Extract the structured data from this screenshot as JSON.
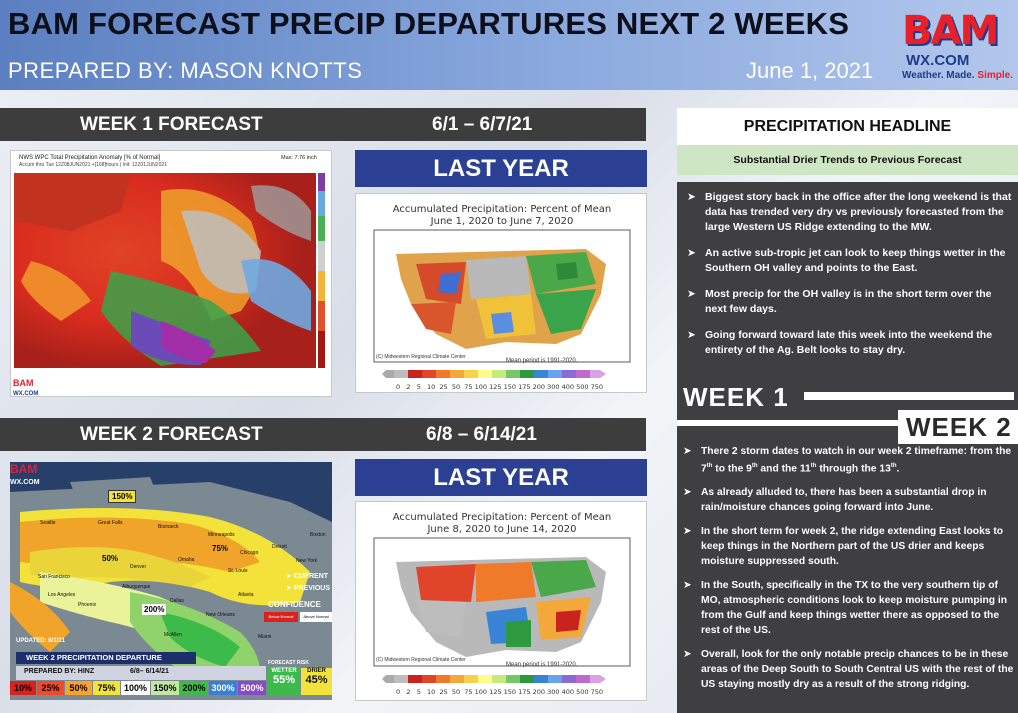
{
  "header": {
    "title": "BAM FORECAST PRECIP DEPARTURES NEXT 2 WEEKS",
    "prepared_by": "PREPARED BY: MASON KNOTTS",
    "date": "June 1, 2021",
    "logo_text": "BAM",
    "logo_domain": "WX.COM",
    "logo_tag_1": "Weather. Made. ",
    "logo_tag_2": "Simple."
  },
  "week1": {
    "label": "WEEK 1 FORECAST",
    "range": "6/1 – 6/7/21",
    "map_title": "NWS WPC Total Precipitation Anomaly [% of Normal]",
    "map_sub": "Accum thru Tue 12Z08JUN2021 +[168]hours | Init: 12Z01JUN2021",
    "map_max": "Max: 7.76 inch",
    "last_year": "LAST YEAR",
    "ly_title_1": "Accumulated Precipitation: Percent of Mean",
    "ly_title_2": "June 1, 2020 to June 7, 2020",
    "ly_credit": "(C) Midwestern Regional Climate Center",
    "ly_period": "Mean period is 1991-2020."
  },
  "week2": {
    "label": "WEEK 2 FORECAST",
    "range": "6/8 – 6/14/21",
    "last_year": "LAST YEAR",
    "ly_title_1": "Accumulated Precipitation: Percent of Mean",
    "ly_title_2": "June 8, 2020 to June 14, 2020",
    "ly_credit": "(C) Midwestern Regional Climate Center",
    "ly_period": "Mean period is 1991-2020.",
    "map_legend_current": "CURRENT",
    "map_legend_previous": "PREVIOUS",
    "confidence": "CONFIDENCE",
    "below_normal": "Below Normal",
    "above_normal": "Above Normal",
    "updated": "UPDATED: 6/1/21",
    "departure_title": "WEEK 2 PRECIPITATION DEPARTURE",
    "prepared_by": "PREPARED BY: HINZ",
    "dates": "6/8– 6/14/21",
    "forecast_risk": "FORECAST RISK",
    "wetter": "WETTER",
    "drier": "DRIER",
    "wetter_pct": "55%",
    "drier_pct": "45%",
    "scale": [
      "10%",
      "25%",
      "50%",
      "75%",
      "100%",
      "150%",
      "200%",
      "300%",
      "500%"
    ],
    "labels": [
      "150%",
      "50%",
      "75%",
      "200%"
    ],
    "cities": [
      "Seattle",
      "Great Falls",
      "Bismarck",
      "Minneapolis",
      "Chicago",
      "Detroit",
      "Omaha",
      "Denver",
      "St. Louis",
      "San Francisco",
      "Los Angeles",
      "Albuquerque",
      "Dallas",
      "Atlanta",
      "New York",
      "New Orleans",
      "McAllen",
      "Miami",
      "Boston",
      "Phoenix"
    ]
  },
  "ly_scale": [
    "0",
    "2",
    "5",
    "10",
    "25",
    "50",
    "75",
    "100",
    "125",
    "150",
    "175",
    "200",
    "300",
    "400",
    "500",
    "750"
  ],
  "right": {
    "headline_title": "PRECIPITATION HEADLINE",
    "headline_sub": "Substantial Drier Trends to Previous Forecast",
    "bullets": [
      "Biggest story back in the office after the long weekend is that data has trended very dry vs previously forecasted from the large Western US Ridge extending to the MW.",
      "An active sub-tropic jet can look to keep things wetter in the Southern OH valley and points to the East.",
      "Most precip for the OH valley is in the short term over the next few days.",
      "Going forward toward late this week into the weekend the entirety of the Ag. Belt looks to stay dry."
    ],
    "week1_label": "WEEK 1",
    "week2_label": "WEEK 2",
    "w2_bullet1_a": "There 2 storm dates to watch in our week 2 timeframe: from the 7",
    "w2_bullet1_b": "th",
    "w2_bullet1_c": " to the 9",
    "w2_bullet1_d": "th",
    "w2_bullet1_e": " and the 11",
    "w2_bullet1_f": "th",
    "w2_bullet1_g": " through the 13",
    "w2_bullet1_h": "th",
    "w2_bullet1_i": ".",
    "bullets2": [
      "As already alluded to, there has been a substantial drop in rain/moisture chances going forward into June.",
      "In the short term for week 2, the ridge extending East looks to keep things in the Northern part of the US drier and keeps moisture suppressed south.",
      "In the South, specifically in the TX to the very southern tip of MO, atmospheric conditions look to keep moisture pumping in from the Gulf and keep things wetter there as opposed to the rest of the US.",
      "Overall, look for the only notable precip chances to be in these areas of the Deep South to South Central US with the rest of the US staying mostly dry as a result of the strong ridging."
    ]
  },
  "colors": {
    "header_blue": "#5b7fc0",
    "dark_bar": "#3d3d3d",
    "last_year_blue": "#2b3f93",
    "headline_green": "#cfe6c4",
    "panel_dark": "#3f3f41"
  }
}
